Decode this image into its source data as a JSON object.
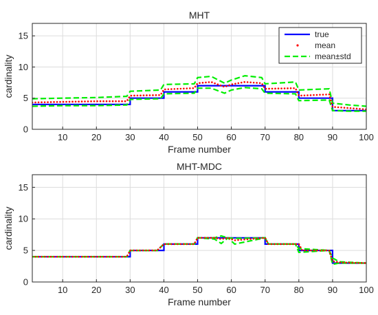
{
  "colors": {
    "true": "#0000ff",
    "mean": "#ff0000",
    "std": "#00ee00",
    "grid": "#dcdcdc",
    "axis": "#262626"
  },
  "chart_data": [
    {
      "type": "line",
      "title": "MHT",
      "xlabel": "Frame number",
      "ylabel": "cardinality",
      "xlim": [
        1,
        100
      ],
      "ylim": [
        0,
        17
      ],
      "xticks": [
        10,
        20,
        30,
        40,
        50,
        60,
        70,
        80,
        90,
        100
      ],
      "yticks": [
        0,
        5,
        10,
        15
      ],
      "grid": true,
      "legend": {
        "position": "top-right",
        "entries": [
          {
            "label": "true",
            "style": "solid"
          },
          {
            "label": "mean",
            "style": "dots"
          },
          {
            "label": "mean±std",
            "style": "dashed"
          }
        ]
      },
      "series": [
        {
          "name": "true",
          "style": "step",
          "points": [
            [
              1,
              4
            ],
            [
              30,
              4
            ],
            [
              30,
              5
            ],
            [
              40,
              5
            ],
            [
              40,
              6
            ],
            [
              50,
              6
            ],
            [
              50,
              7
            ],
            [
              70,
              7
            ],
            [
              70,
              6
            ],
            [
              80,
              6
            ],
            [
              80,
              5
            ],
            [
              90,
              5
            ],
            [
              90,
              3
            ],
            [
              100,
              3
            ]
          ]
        },
        {
          "name": "mean",
          "style": "dots",
          "points": [
            [
              1,
              4.3
            ],
            [
              10,
              4.4
            ],
            [
              20,
              4.5
            ],
            [
              29,
              4.5
            ],
            [
              30,
              5.4
            ],
            [
              39,
              5.5
            ],
            [
              40,
              6.4
            ],
            [
              49,
              6.6
            ],
            [
              50,
              7.4
            ],
            [
              54,
              7.6
            ],
            [
              58,
              6.8
            ],
            [
              60,
              7.2
            ],
            [
              64,
              7.6
            ],
            [
              69,
              7.4
            ],
            [
              70,
              6.5
            ],
            [
              79,
              6.6
            ],
            [
              80,
              5.4
            ],
            [
              89,
              5.6
            ],
            [
              90,
              3.6
            ],
            [
              95,
              3.4
            ],
            [
              100,
              3.2
            ]
          ]
        },
        {
          "name": "mean+std",
          "style": "dashed",
          "points": [
            [
              1,
              4.9
            ],
            [
              10,
              5.0
            ],
            [
              20,
              5.1
            ],
            [
              29,
              5.3
            ],
            [
              30,
              6.1
            ],
            [
              39,
              6.3
            ],
            [
              40,
              7.2
            ],
            [
              49,
              7.3
            ],
            [
              50,
              8.3
            ],
            [
              54,
              8.5
            ],
            [
              58,
              7.4
            ],
            [
              60,
              7.9
            ],
            [
              64,
              8.6
            ],
            [
              69,
              8.3
            ],
            [
              70,
              7.3
            ],
            [
              79,
              7.6
            ],
            [
              80,
              6.3
            ],
            [
              89,
              6.5
            ],
            [
              90,
              4.2
            ],
            [
              95,
              3.9
            ],
            [
              100,
              3.7
            ]
          ]
        },
        {
          "name": "mean-std",
          "style": "dashed",
          "points": [
            [
              1,
              3.7
            ],
            [
              10,
              3.8
            ],
            [
              20,
              3.8
            ],
            [
              29,
              3.9
            ],
            [
              30,
              4.8
            ],
            [
              39,
              4.9
            ],
            [
              40,
              5.7
            ],
            [
              49,
              5.8
            ],
            [
              50,
              6.6
            ],
            [
              54,
              6.6
            ],
            [
              58,
              5.8
            ],
            [
              60,
              6.3
            ],
            [
              64,
              6.7
            ],
            [
              69,
              6.5
            ],
            [
              70,
              5.8
            ],
            [
              79,
              5.7
            ],
            [
              80,
              4.6
            ],
            [
              89,
              4.7
            ],
            [
              90,
              3.0
            ],
            [
              95,
              2.9
            ],
            [
              100,
              2.9
            ]
          ]
        }
      ]
    },
    {
      "type": "line",
      "title": "MHT-MDC",
      "xlabel": "Frame number",
      "ylabel": "cardinality",
      "xlim": [
        1,
        100
      ],
      "ylim": [
        0,
        17
      ],
      "xticks": [
        10,
        20,
        30,
        40,
        50,
        60,
        70,
        80,
        90,
        100
      ],
      "yticks": [
        0,
        5,
        10,
        15
      ],
      "grid": true,
      "series": [
        {
          "name": "true",
          "style": "step",
          "points": [
            [
              1,
              4
            ],
            [
              30,
              4
            ],
            [
              30,
              5
            ],
            [
              40,
              5
            ],
            [
              40,
              6
            ],
            [
              50,
              6
            ],
            [
              50,
              7
            ],
            [
              70,
              7
            ],
            [
              70,
              6
            ],
            [
              80,
              6
            ],
            [
              80,
              5
            ],
            [
              90,
              5
            ],
            [
              90,
              3
            ],
            [
              100,
              3
            ]
          ]
        },
        {
          "name": "mean",
          "style": "dots",
          "points": [
            [
              1,
              4
            ],
            [
              29,
              4
            ],
            [
              30,
              5
            ],
            [
              38,
              5
            ],
            [
              40,
              6
            ],
            [
              49,
              6
            ],
            [
              50,
              7
            ],
            [
              55,
              7
            ],
            [
              57,
              6.8
            ],
            [
              59,
              7
            ],
            [
              61,
              6.6
            ],
            [
              70,
              7
            ],
            [
              71,
              6
            ],
            [
              80,
              6
            ],
            [
              81,
              5
            ],
            [
              89,
              5
            ],
            [
              90,
              3.3
            ],
            [
              92,
              3.1
            ],
            [
              100,
              3
            ]
          ]
        },
        {
          "name": "mean+std",
          "style": "dashed",
          "points": [
            [
              1,
              4
            ],
            [
              29,
              4
            ],
            [
              30,
              5
            ],
            [
              38,
              5
            ],
            [
              40,
              6
            ],
            [
              49,
              6
            ],
            [
              50,
              7
            ],
            [
              55,
              7
            ],
            [
              57,
              7.3
            ],
            [
              59,
              7
            ],
            [
              61,
              6.9
            ],
            [
              70,
              7
            ],
            [
              71,
              6
            ],
            [
              79,
              6
            ],
            [
              80,
              5.3
            ],
            [
              89,
              5
            ],
            [
              90,
              3.8
            ],
            [
              92,
              3.2
            ],
            [
              100,
              3
            ]
          ]
        },
        {
          "name": "mean-std",
          "style": "dashed",
          "points": [
            [
              1,
              4
            ],
            [
              29,
              4
            ],
            [
              30,
              5
            ],
            [
              38,
              5
            ],
            [
              40,
              6
            ],
            [
              49,
              6
            ],
            [
              50,
              7
            ],
            [
              55,
              6.8
            ],
            [
              57,
              6.1
            ],
            [
              59,
              7
            ],
            [
              61,
              6
            ],
            [
              70,
              7
            ],
            [
              71,
              6
            ],
            [
              79,
              6
            ],
            [
              80,
              4.7
            ],
            [
              89,
              5
            ],
            [
              90,
              2.8
            ],
            [
              92,
              3.0
            ],
            [
              100,
              3
            ]
          ]
        }
      ]
    }
  ]
}
